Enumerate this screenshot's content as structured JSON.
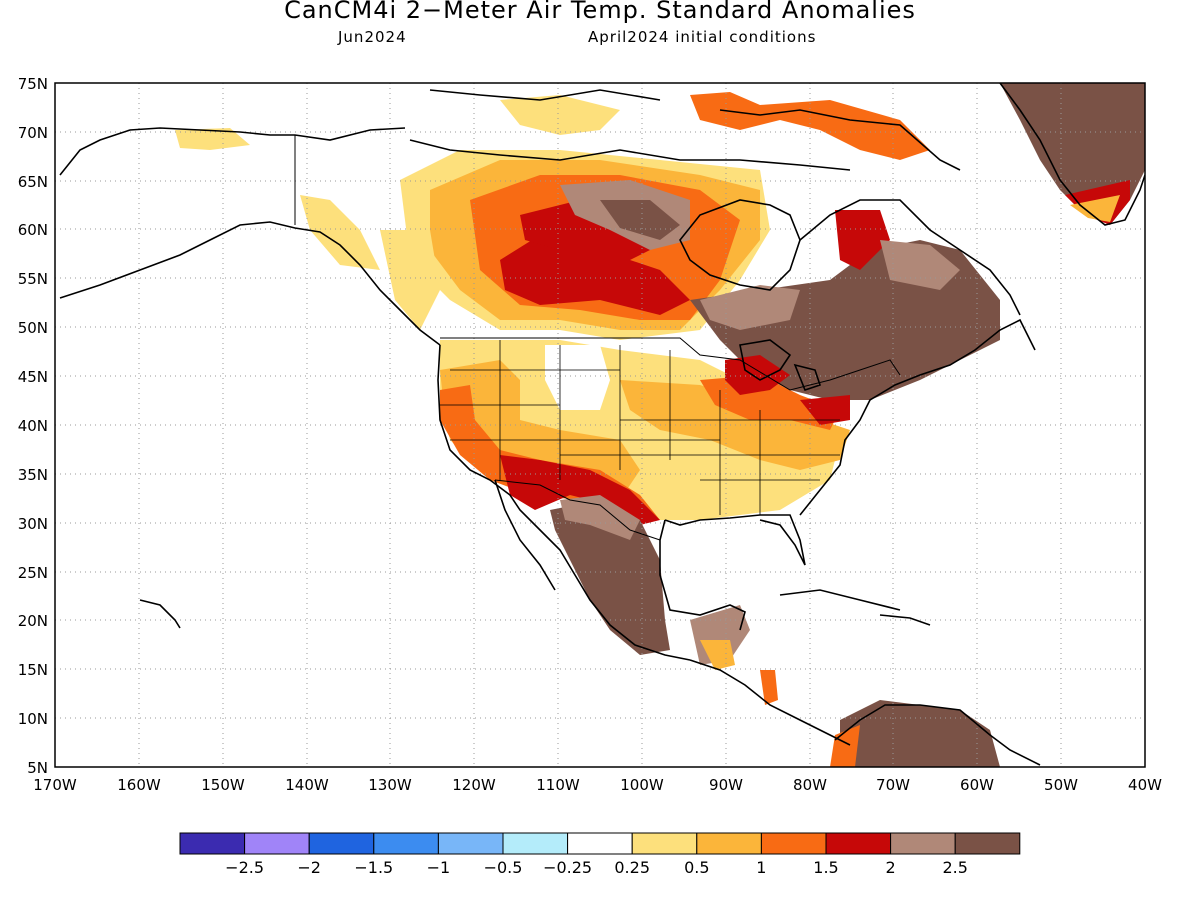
{
  "title": "CanCM4i 2−Meter Air Temp. Standard Anomalies",
  "subtitle_left": "Jun2024",
  "subtitle_right": "April2024 initial conditions",
  "map": {
    "lon_range": [
      -170,
      -40
    ],
    "lat_range": [
      5,
      75
    ],
    "lat_ticks": [
      "75N",
      "70N",
      "65N",
      "60N",
      "55N",
      "50N",
      "45N",
      "40N",
      "35N",
      "30N",
      "25N",
      "20N",
      "15N",
      "10N",
      "5N"
    ],
    "lon_ticks": [
      "170W",
      "160W",
      "150W",
      "140W",
      "130W",
      "120W",
      "110W",
      "100W",
      "90W",
      "80W",
      "70W",
      "60W",
      "50W",
      "40W"
    ],
    "grid": "dotted"
  },
  "colorbar": {
    "colors": [
      "#3b2bb0",
      "#a084f8",
      "#1f64e0",
      "#3c8cf0",
      "#78b6f8",
      "#b4ecfa",
      "#ffffff",
      "#fde07c",
      "#fbb53a",
      "#f86b14",
      "#c60808",
      "#b08878",
      "#7a5246"
    ],
    "labels": [
      "−2.5",
      "−2",
      "−1.5",
      "−1",
      "−0.5",
      "−0.25",
      "0.25",
      "0.5",
      "1",
      "1.5",
      "2",
      "2.5"
    ]
  },
  "anomaly_regions": [
    {
      "label": "Greenland",
      "level": "above 2.5"
    },
    {
      "label": "Eastern Canada / Great Lakes",
      "level": "above 2.5"
    },
    {
      "label": "Mexico",
      "level": "above 2.5"
    },
    {
      "label": "Northern South America",
      "level": "above 2.5"
    },
    {
      "label": "Hudson Bay interior",
      "level": "2 to 2.5"
    },
    {
      "label": "Canadian Prairies",
      "level": "1.5 to 2"
    },
    {
      "label": "Southwest US",
      "level": "1.5 to 2"
    },
    {
      "label": "Western US",
      "level": "0.5 to 1"
    },
    {
      "label": "Southeast US",
      "level": "0.25 to 1"
    },
    {
      "label": "Alaska",
      "level": "near normal"
    },
    {
      "label": "Northern Plains",
      "level": "near normal"
    }
  ]
}
